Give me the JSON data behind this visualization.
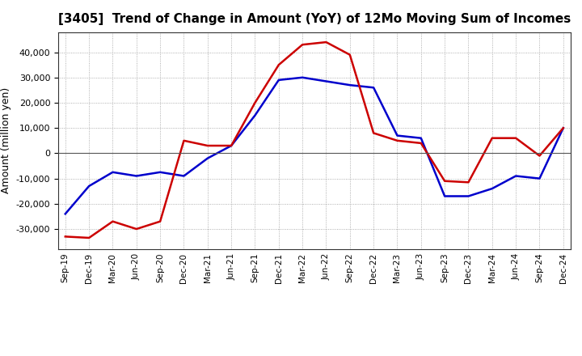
{
  "title": "[3405]  Trend of Change in Amount (YoY) of 12Mo Moving Sum of Incomes",
  "ylabel": "Amount (million yen)",
  "background_color": "#ffffff",
  "plot_bg_color": "#ffffff",
  "grid_color": "#aaaaaa",
  "x_labels": [
    "Sep-19",
    "Dec-19",
    "Mar-20",
    "Jun-20",
    "Sep-20",
    "Dec-20",
    "Mar-21",
    "Jun-21",
    "Sep-21",
    "Dec-21",
    "Mar-22",
    "Jun-22",
    "Sep-22",
    "Dec-22",
    "Mar-23",
    "Jun-23",
    "Sep-23",
    "Dec-23",
    "Mar-24",
    "Jun-24",
    "Sep-24",
    "Dec-24"
  ],
  "ordinary_income": [
    -24000,
    -13000,
    -7500,
    -9000,
    -7500,
    -9000,
    -2000,
    3000,
    15000,
    29000,
    30000,
    28500,
    27000,
    26000,
    7000,
    6000,
    -17000,
    -17000,
    -14000,
    -9000,
    -10000,
    10000
  ],
  "net_income": [
    -33000,
    -33500,
    -27000,
    -30000,
    -27000,
    5000,
    3000,
    3000,
    20000,
    35000,
    43000,
    44000,
    39000,
    8000,
    5000,
    4000,
    -11000,
    -11500,
    6000,
    6000,
    -1000,
    10000
  ],
  "ordinary_income_color": "#0000cc",
  "net_income_color": "#cc0000",
  "ylim": [
    -38000,
    48000
  ],
  "yticks": [
    -30000,
    -20000,
    -10000,
    0,
    10000,
    20000,
    30000,
    40000
  ],
  "line_width": 1.8
}
